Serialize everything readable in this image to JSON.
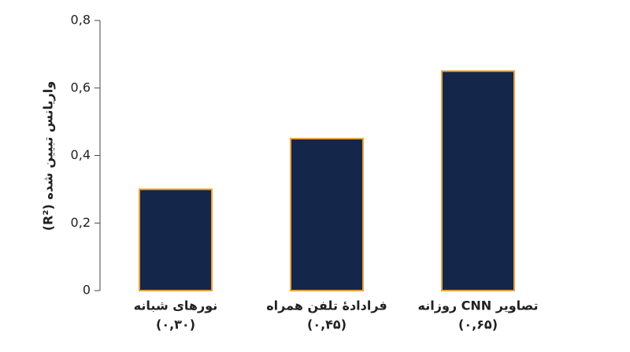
{
  "chart_data": {
    "type": "bar",
    "y_label": "واریانس تبیین شده (R²)",
    "categories": [
      "نورهای شبانه",
      "فرادادهٔ تلفن همراه",
      "تصاویر CNN روزانه"
    ],
    "values": [
      0.3,
      0.45,
      0.65
    ],
    "value_labels": [
      "(۰,۳۰)",
      "(۰,۴۵)",
      "(۰,۶۵)"
    ],
    "color": "#14264a",
    "edge_color": "#e8a33d",
    "ylim": [
      0,
      0.8
    ],
    "yticks": [
      0,
      {
        "value": 0.2,
        "label": "0,2"
      },
      {
        "value": 0.4,
        "label": "0,4"
      },
      {
        "value": 0.6,
        "label": "0,6"
      },
      {
        "value": 0.8,
        "label": "0,8"
      }
    ],
    "grid": false
  }
}
